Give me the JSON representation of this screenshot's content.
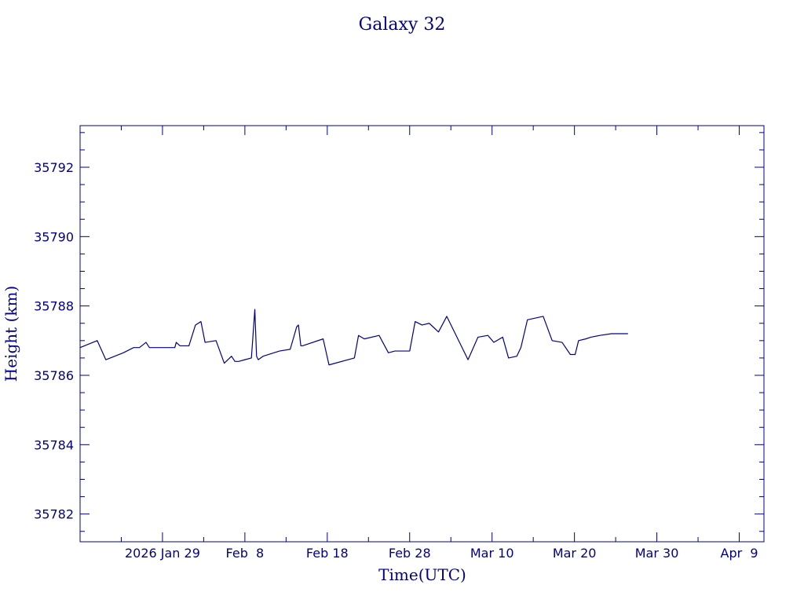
{
  "chart_data": {
    "type": "line",
    "title": "Galaxy 32",
    "xlabel": "Time(UTC)",
    "ylabel": "Height (km)",
    "x_axis": "date",
    "x_range": [
      "2026-01-19",
      "2026-04-12"
    ],
    "x_tick_labels": [
      {
        "date": "2026-01-29",
        "label": "2026 Jan 29"
      },
      {
        "date": "2026-02-08",
        "label": "Feb  8"
      },
      {
        "date": "2026-02-18",
        "label": "Feb 18"
      },
      {
        "date": "2026-02-28",
        "label": "Feb 28"
      },
      {
        "date": "2026-03-10",
        "label": "Mar 10"
      },
      {
        "date": "2026-03-20",
        "label": "Mar 20"
      },
      {
        "date": "2026-03-30",
        "label": "Mar 30"
      },
      {
        "date": "2026-04-09",
        "label": "Apr  9"
      }
    ],
    "ylim": [
      35781.2,
      35793.2
    ],
    "y_ticks": [
      35782,
      35784,
      35786,
      35788,
      35790,
      35792
    ],
    "grid": false,
    "legend": "none",
    "color": "#00008b",
    "series": [
      {
        "x": [
          "2026-01-19T00:00",
          "2026-01-21T02:00",
          "2026-01-22T03:00",
          "2026-01-24T06:00",
          "2026-01-25T12:00",
          "2026-01-26T05:00",
          "2026-01-27T00:00",
          "2026-01-27T10:00",
          "2026-01-28T00:00",
          "2026-01-29T12:00",
          "2026-01-30T12:00",
          "2026-01-30T16:00",
          "2026-01-31T03:00",
          "2026-02-01T05:00",
          "2026-02-02T00:00",
          "2026-02-02T16:00",
          "2026-02-03T04:00",
          "2026-02-04T12:00",
          "2026-02-05T12:00",
          "2026-02-06T09:00",
          "2026-02-06T19:00",
          "2026-02-07T06:00",
          "2026-02-08T00:00",
          "2026-02-08T19:00",
          "2026-02-09T05:00",
          "2026-02-09T10:00",
          "2026-02-09T15:00",
          "2026-02-10T05:00",
          "2026-02-12T05:00",
          "2026-02-13T12:00",
          "2026-02-14T07:00",
          "2026-02-14T12:00",
          "2026-02-14T19:00",
          "2026-02-15T00:00",
          "2026-02-17T12:00",
          "2026-02-18T05:00",
          "2026-02-21T07:00",
          "2026-02-21T19:00",
          "2026-02-22T12:00",
          "2026-02-24T07:00",
          "2026-02-25T10:00",
          "2026-02-26T05:00",
          "2026-02-28T00:00",
          "2026-02-28T16:00",
          "2026-03-01T12:00",
          "2026-03-02T09:00",
          "2026-03-03T12:00",
          "2026-03-04T12:00",
          "2026-03-07T02:00",
          "2026-03-08T07:00",
          "2026-03-09T12:00",
          "2026-03-10T05:00",
          "2026-03-11T07:00",
          "2026-03-12T00:00",
          "2026-03-13T00:00",
          "2026-03-13T12:00",
          "2026-03-14T07:00",
          "2026-03-16T05:00",
          "2026-03-17T07:00",
          "2026-03-18T12:00",
          "2026-03-19T12:00",
          "2026-03-20T02:00",
          "2026-03-20T12:00",
          "2026-03-21T09:00",
          "2026-03-22T00:00",
          "2026-03-23T02:00",
          "2026-03-24T12:00",
          "2026-03-25T12:00",
          "2026-03-26T07:00",
          "2026-03-26T12:00"
        ],
        "y": [
          35786.8,
          35787.0,
          35786.45,
          35786.65,
          35786.8,
          35786.8,
          35786.95,
          35786.8,
          35786.8,
          35786.8,
          35786.8,
          35786.95,
          35786.85,
          35786.85,
          35787.45,
          35787.55,
          35786.95,
          35787.0,
          35786.35,
          35786.55,
          35786.4,
          35786.4,
          35786.45,
          35786.5,
          35787.9,
          35786.55,
          35786.45,
          35786.55,
          35786.7,
          35786.75,
          35787.4,
          35787.45,
          35786.85,
          35786.85,
          35787.05,
          35786.3,
          35786.5,
          35787.15,
          35787.05,
          35787.15,
          35786.65,
          35786.7,
          35786.7,
          35787.55,
          35787.45,
          35787.5,
          35787.25,
          35787.7,
          35786.45,
          35787.1,
          35787.15,
          35786.95,
          35787.1,
          35786.5,
          35786.55,
          35786.8,
          35787.6,
          35787.7,
          35787.0,
          35786.95,
          35786.6,
          35786.6,
          35787.0,
          35787.05,
          35787.1,
          35787.15,
          35787.2,
          35787.2,
          35787.2,
          35787.2
        ]
      }
    ]
  }
}
